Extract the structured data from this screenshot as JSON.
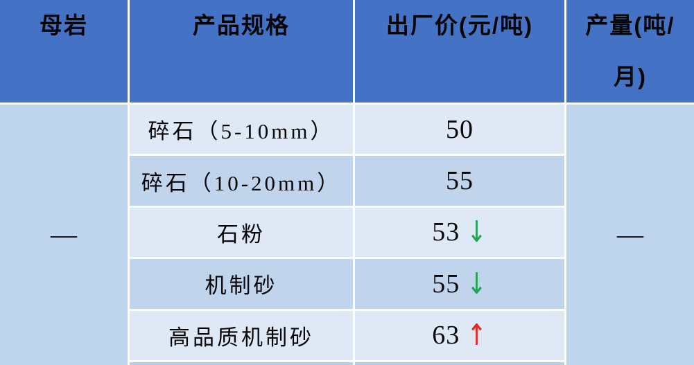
{
  "table": {
    "header": {
      "rock_col": "母岩",
      "spec_col": "产品规格",
      "price_col": "出厂价(元/吨)",
      "output_col": "产量(吨/月)",
      "output_col_lines": [
        "产量(吨/",
        "月)"
      ]
    },
    "merged": {
      "rock_value": "—",
      "output_value": "—"
    },
    "rows": [
      {
        "spec": "碎石（5-10mm）",
        "price": "50",
        "trend": "none"
      },
      {
        "spec": "碎石（10-20mm）",
        "price": "55",
        "trend": "none"
      },
      {
        "spec": "石粉",
        "price": "53",
        "trend": "down"
      },
      {
        "spec": "机制砂",
        "price": "55",
        "trend": "down"
      },
      {
        "spec": "高品质机制砂",
        "price": "63",
        "trend": "up"
      }
    ]
  },
  "icons": {
    "down_arrow": "↓",
    "up_arrow": "↑"
  },
  "colors": {
    "header_bg": "#4472c4",
    "row_light": "#dfe9f5",
    "row_medium": "#c0d4ec",
    "merged_bg": "#bed3ec",
    "sliver_bg": "#b7cce7",
    "divider": "#fbfdff",
    "text": "#060608",
    "arrow_down": "#1fa452",
    "arrow_up": "#e8281e"
  }
}
